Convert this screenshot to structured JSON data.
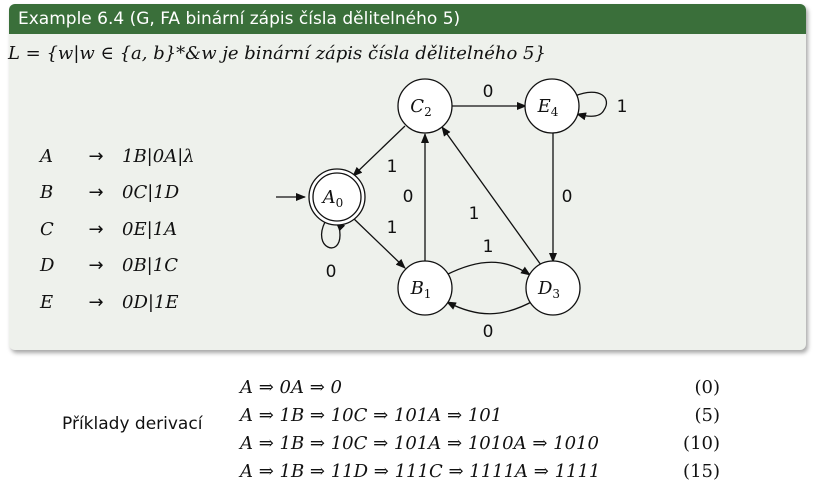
{
  "block": {
    "title": "Example 6.4 (G, FA binární zápis čísla dělitelného 5)",
    "language": "L = {w|w ∈ {a, b}*&w je binární zápis čísla dělitelného 5}"
  },
  "grammar": [
    {
      "lhs": "A",
      "arrow": "→",
      "rhs": "1B|0A|λ"
    },
    {
      "lhs": "B",
      "arrow": "→",
      "rhs": "0C|1D"
    },
    {
      "lhs": "C",
      "arrow": "→",
      "rhs": "0E|1A"
    },
    {
      "lhs": "D",
      "arrow": "→",
      "rhs": "0B|1C"
    },
    {
      "lhs": "E",
      "arrow": "→",
      "rhs": "0D|1E"
    }
  ],
  "automaton": {
    "states": {
      "A0": {
        "name": "A",
        "sub": "0"
      },
      "B1": {
        "name": "B",
        "sub": "1"
      },
      "C2": {
        "name": "C",
        "sub": "2"
      },
      "D3": {
        "name": "D",
        "sub": "3"
      },
      "E4": {
        "name": "E",
        "sub": "4"
      }
    },
    "labels": {
      "c_e": "0",
      "e_e": "1",
      "c_a": "1",
      "a_b": "1",
      "a_a": "0",
      "b_c": "0",
      "d_c": "1",
      "e_d": "0",
      "b_d": "1",
      "d_b": "0"
    }
  },
  "examples": {
    "label": "Příklady derivací",
    "rows": [
      {
        "chain": "A ⇒ 0A ⇒ 0",
        "value": "(0)"
      },
      {
        "chain": "A ⇒ 1B ⇒ 10C ⇒ 101A ⇒ 101",
        "value": "(5)"
      },
      {
        "chain": "A ⇒ 1B ⇒ 10C ⇒ 101A ⇒ 1010A ⇒ 1010",
        "value": "(10)"
      },
      {
        "chain": "A ⇒ 1B ⇒ 11D ⇒ 111C ⇒ 1111A ⇒ 1111",
        "value": "(15)"
      }
    ]
  }
}
